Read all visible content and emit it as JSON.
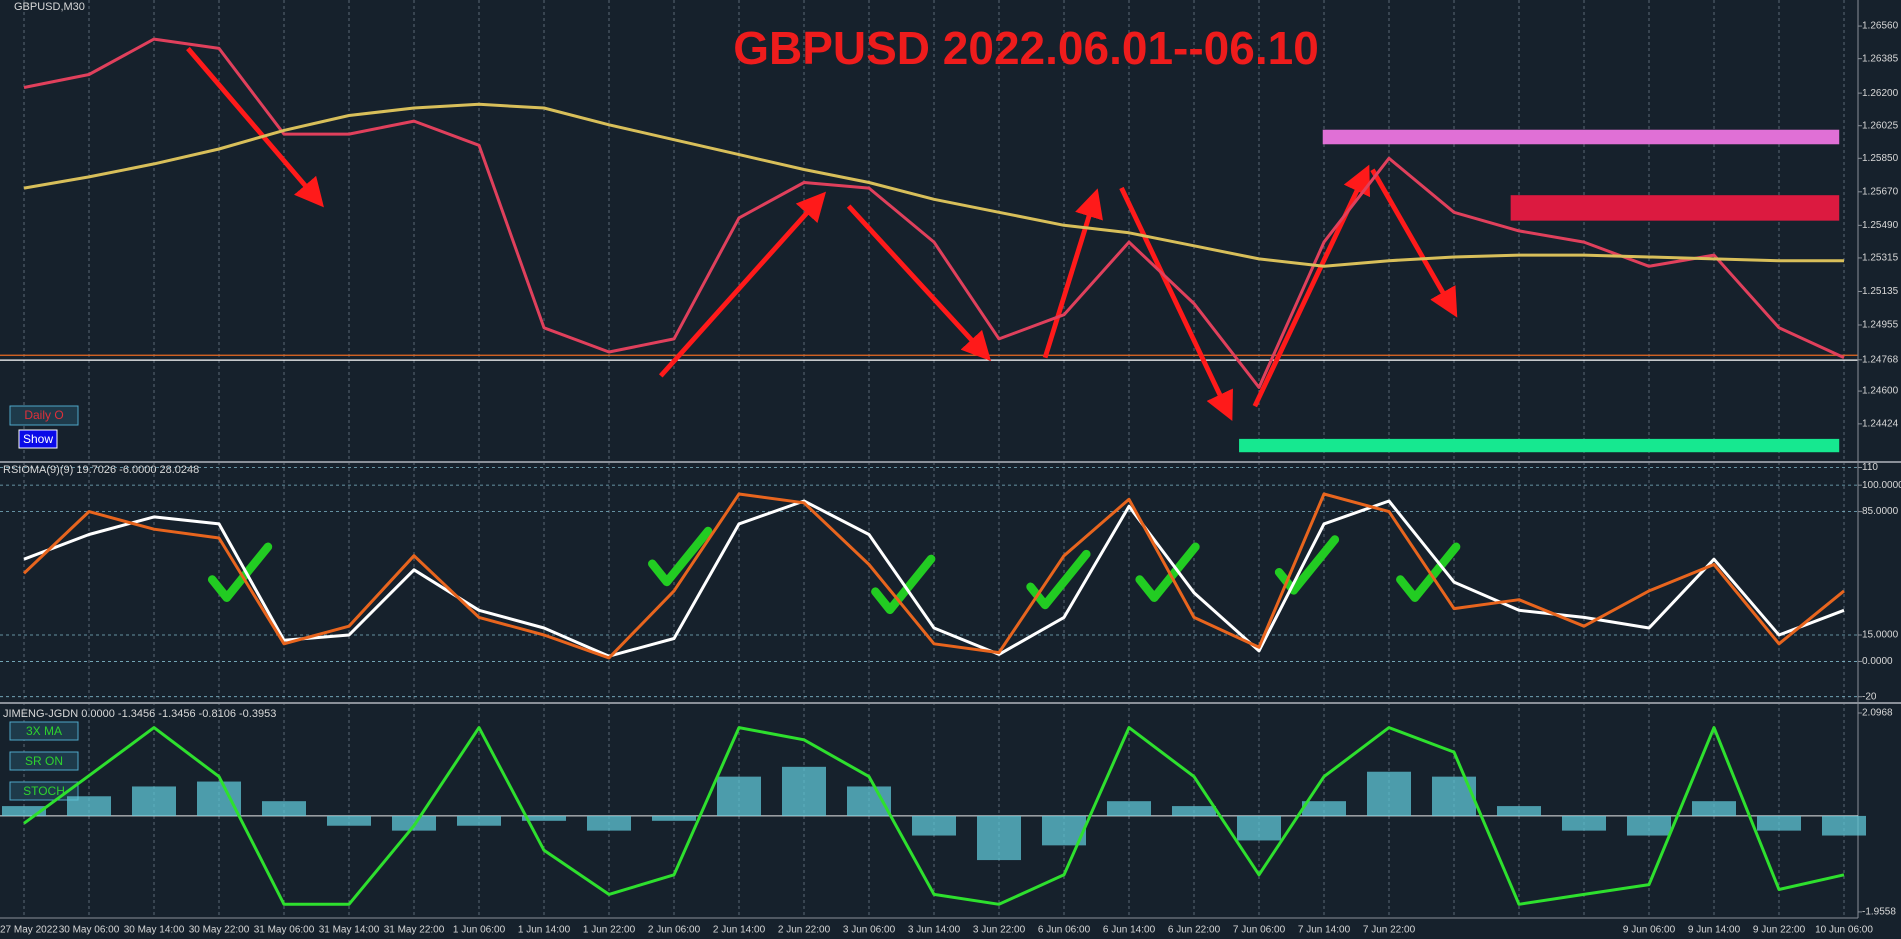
{
  "chart_data": [
    {
      "type": "line",
      "title": "GBPUSD 2022.06.01--06.10",
      "label": "GBPUSD,M30",
      "buttons": [
        "Daily O",
        "Show"
      ],
      "categories": [
        "27 May 2022",
        "30 May 06:00",
        "30 May 14:00",
        "30 May 22:00",
        "31 May 06:00",
        "31 May 14:00",
        "31 May 22:00",
        "1 Jun 06:00",
        "1 Jun 14:00",
        "1 Jun 22:00",
        "2 Jun 06:00",
        "2 Jun 14:00",
        "2 Jun 22:00",
        "3 Jun 06:00",
        "3 Jun 14:00",
        "3 Jun 22:00",
        "6 Jun 06:00",
        "6 Jun 14:00",
        "6 Jun 22:00",
        "7 Jun 06:00",
        "7 Jun 14:00",
        "7 Jun 22:00",
        null,
        null,
        null,
        "9 Jun 06:00",
        "9 Jun 14:00",
        "9 Jun 22:00",
        "10 Jun 06:00"
      ],
      "series": [
        {
          "color": "#e0405c",
          "values": [
            1.2623,
            1.263,
            1.2649,
            1.2644,
            1.2598,
            1.2598,
            1.2605,
            1.2592,
            1.2494,
            1.2481,
            1.2488,
            1.2553,
            1.2572,
            1.2569,
            1.254,
            1.2488,
            1.2501,
            1.254,
            1.2507,
            1.2462,
            1.254,
            1.2585,
            1.2556,
            1.2546,
            1.254,
            1.2527,
            1.2533,
            1.2494,
            1.2478
          ]
        },
        {
          "color": "#d8bf5a",
          "values": [
            1.2569,
            1.2575,
            1.2582,
            1.259,
            1.26,
            1.2608,
            1.2612,
            1.2614,
            1.2612,
            1.2603,
            1.2595,
            1.2587,
            1.2579,
            1.2572,
            1.2563,
            1.2556,
            1.2549,
            1.2545,
            1.2538,
            1.2531,
            1.2527,
            1.253,
            1.2532,
            1.2533,
            1.2533,
            1.2532,
            1.2531,
            1.253,
            1.253
          ]
        }
      ],
      "ylim": [
        1.2423,
        1.267
      ],
      "yticks": [
        {
          "value": 1.2656,
          "label": "1.26560"
        },
        1.26385,
        {
          "value": 1.262,
          "label": "1.26200"
        },
        1.26025,
        {
          "value": 1.2585,
          "label": "1.25850"
        },
        {
          "value": 1.2567,
          "label": "1.25670"
        },
        {
          "value": 1.2549,
          "label": "1.25490"
        },
        1.25315,
        1.25135,
        1.24955,
        1.24768,
        {
          "value": 1.246,
          "label": "1.24600"
        },
        1.24424
      ],
      "grid": true
    },
    {
      "type": "line",
      "label": "RSIOMA(9)(9) 19.7026 -6.0000 28.0248",
      "series": [
        {
          "color": "#ffffff",
          "values": [
            58,
            72,
            82,
            78,
            12,
            15,
            52,
            29,
            19,
            3,
            13,
            78,
            91,
            72,
            19,
            4,
            25,
            88,
            39,
            6,
            78,
            91,
            45,
            29,
            25,
            19,
            58,
            15,
            29
          ]
        },
        {
          "color": "#e8651e",
          "values": [
            50,
            85,
            75,
            70,
            10,
            20,
            60,
            25,
            15,
            2,
            40,
            95,
            90,
            55,
            10,
            5,
            60,
            92,
            25,
            8,
            95,
            85,
            30,
            35,
            20,
            40,
            55,
            10,
            40
          ]
        }
      ],
      "ylim": [
        -23,
        112
      ],
      "yticks": [
        110,
        {
          "value": 100,
          "label": "100.0000"
        },
        {
          "value": 85,
          "label": "85.0000"
        },
        {
          "value": 15,
          "label": "15.0000"
        },
        {
          "value": 0,
          "label": "0.0000"
        },
        -20
      ],
      "grid": true
    },
    {
      "type": "combo",
      "label": "JIMENG-JGDN 0.0000 -1.3456 -1.3456 -0.8106 -0.3953",
      "buttons": [
        "3X MA",
        "SR ON",
        "STOCH"
      ],
      "series": [
        {
          "kind": "bar",
          "color": "#5fc6d6",
          "values": [
            0.2,
            0.4,
            0.6,
            0.7,
            0.3,
            -0.2,
            -0.3,
            -0.2,
            -0.1,
            -0.3,
            -0.1,
            0.8,
            1.0,
            0.6,
            -0.4,
            -0.9,
            -0.6,
            0.3,
            0.2,
            -0.5,
            0.3,
            0.9,
            0.8,
            0.2,
            -0.3,
            -0.4,
            0.3,
            -0.3,
            -0.4
          ]
        },
        {
          "kind": "line",
          "color": "#2ee02e",
          "values": [
            -0.15,
            0.82,
            1.8,
            0.8,
            -1.8,
            -1.8,
            -0.2,
            1.8,
            -0.7,
            -1.6,
            -1.2,
            1.8,
            1.55,
            0.8,
            -1.6,
            -1.8,
            -1.2,
            1.8,
            0.8,
            -1.2,
            0.8,
            1.8,
            1.3,
            -1.8,
            -1.6,
            -1.4,
            1.8,
            -1.5,
            -1.2
          ]
        }
      ],
      "ylim": [
        -2.08,
        2.28
      ],
      "yticks": [
        2.0968,
        -1.9558
      ],
      "grid": true
    }
  ]
}
